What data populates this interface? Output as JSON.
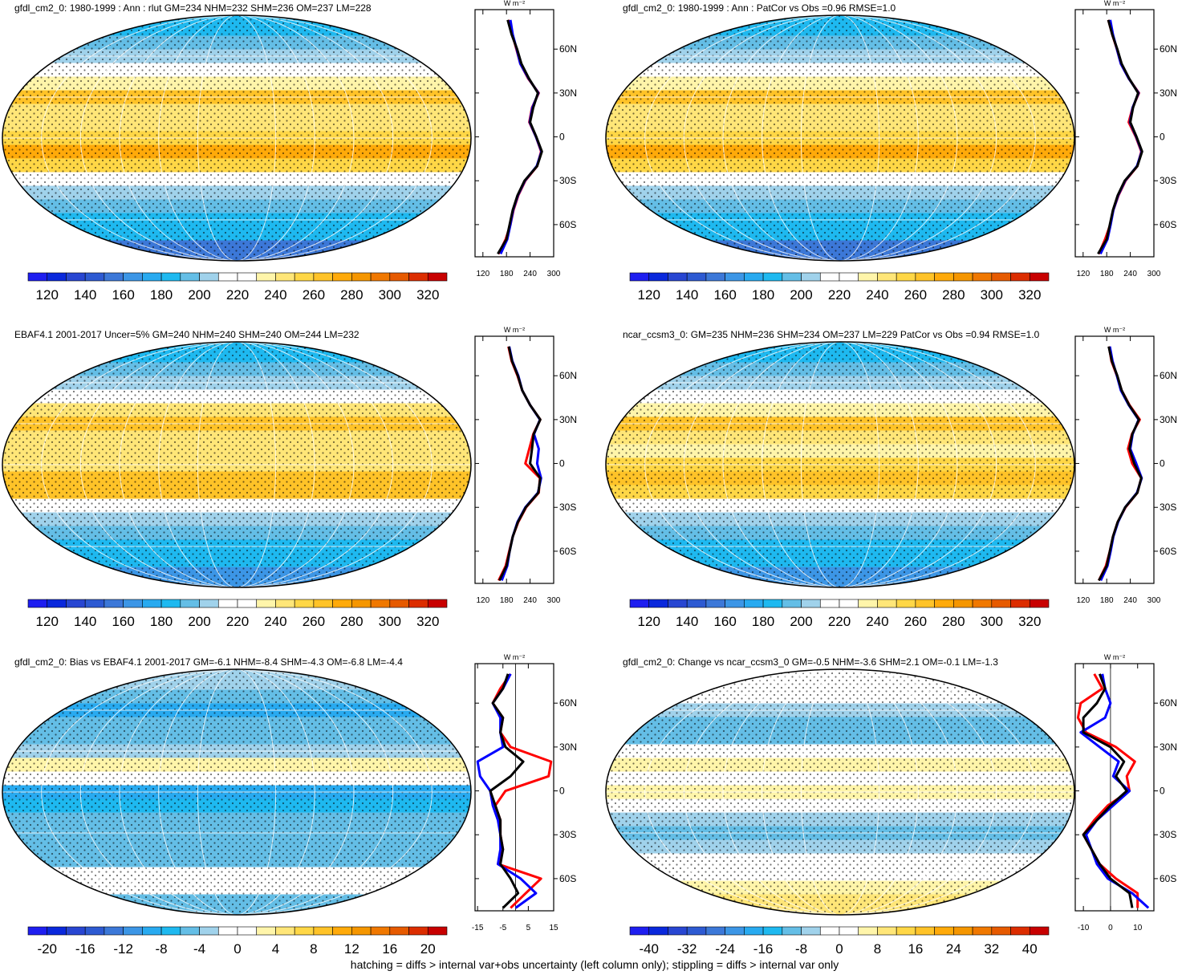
{
  "colormap": [
    "#1e1ef0",
    "#0a28dc",
    "#2846d2",
    "#2d5ad2",
    "#3c78d8",
    "#3c96e6",
    "#28aaf0",
    "#1eb9f0",
    "#64bee6",
    "#a0d2eb",
    "#ffffff",
    "#ffffff",
    "#fff5aa",
    "#ffe678",
    "#ffd746",
    "#ffc328",
    "#ffaa0a",
    "#f59600",
    "#f07800",
    "#e65a00",
    "#dc2d00",
    "#c80000"
  ],
  "panels": [
    {
      "title": "gfdl_cm2_0: 1980-1999 : Ann : rlut GM=234 NHM=232 SHM=236 OM=237 LM=228",
      "colorbar": {
        "labels": [
          120,
          140,
          160,
          180,
          200,
          220,
          240,
          260,
          280,
          300,
          320
        ]
      },
      "zonal": {
        "unit": "W m⁻²",
        "xlim": [
          100,
          300
        ],
        "xticks": [
          120,
          180,
          240,
          300
        ],
        "ylim": [
          -82,
          87
        ],
        "yticks": [
          {
            "value": 60,
            "label": "60N"
          },
          {
            "value": 30,
            "label": "30N"
          },
          0,
          {
            "value": -30,
            "label": "30S"
          },
          {
            "value": -60,
            "label": "60S"
          }
        ],
        "lat": [
          80,
          70,
          60,
          50,
          40,
          30,
          20,
          10,
          0,
          -10,
          -20,
          -30,
          -40,
          -50,
          -60,
          -70,
          -80
        ],
        "series": [
          {
            "color": "#ff0000",
            "values": [
              185,
              195,
              205,
              215,
              235,
              262,
              245,
              238,
              255,
              268,
              258,
              228,
              210,
              198,
              190,
              178,
              160
            ]
          },
          {
            "color": "#0000ff",
            "values": [
              190,
              196,
              206,
              215,
              236,
              261,
              246,
              239,
              255,
              269,
              257,
              227,
              209,
              197,
              190,
              182,
              165
            ]
          },
          {
            "color": "#000000",
            "values": [
              183,
              193,
              207,
              218,
              237,
              260,
              248,
              240,
              256,
              270,
              258,
              226,
              208,
              196,
              188,
              180,
              158
            ]
          }
        ]
      }
    },
    {
      "title": "gfdl_cm2_0: 1980-1999 : Ann : PatCor vs Obs =0.96 RMSE=1.0",
      "colorbar": {
        "labels": [
          120,
          140,
          160,
          180,
          200,
          220,
          240,
          260,
          280,
          300,
          320
        ]
      },
      "zonal": {
        "unit": "W m⁻²",
        "xlim": [
          100,
          300
        ],
        "xticks": [
          120,
          180,
          240,
          300
        ],
        "ylim": [
          -82,
          87
        ],
        "yticks": [
          {
            "value": 60,
            "label": "60N"
          },
          {
            "value": 30,
            "label": "30N"
          },
          0,
          {
            "value": -30,
            "label": "30S"
          },
          {
            "value": -60,
            "label": "60S"
          }
        ],
        "lat": [
          80,
          70,
          60,
          50,
          40,
          30,
          20,
          10,
          0,
          -10,
          -20,
          -30,
          -40,
          -50,
          -60,
          -70,
          -80
        ],
        "series": [
          {
            "color": "#ff0000",
            "values": [
              184,
              194,
              206,
              216,
              236,
              262,
              246,
              236,
              254,
              268,
              258,
              228,
              210,
              197,
              189,
              176,
              160
            ]
          },
          {
            "color": "#0000ff",
            "values": [
              189,
              196,
              206,
              216,
              236,
              261,
              246,
              239,
              255,
              269,
              257,
              227,
              209,
              197,
              190,
              182,
              164
            ]
          },
          {
            "color": "#000000",
            "values": [
              184,
              194,
              207,
              218,
              237,
              260,
              247,
              240,
              256,
              270,
              258,
              226,
              208,
              196,
              188,
              180,
              158
            ]
          }
        ]
      }
    },
    {
      "title": "EBAF4.1 2001-2017 Uncer=5% GM=240 NHM=240 SHM=240 OM=244 LM=232",
      "colorbar": {
        "labels": [
          120,
          140,
          160,
          180,
          200,
          220,
          240,
          260,
          280,
          300,
          320
        ]
      },
      "zonal": {
        "unit": "W m⁻²",
        "xlim": [
          100,
          300
        ],
        "xticks": [
          120,
          180,
          240,
          300
        ],
        "ylim": [
          -82,
          87
        ],
        "yticks": [
          {
            "value": 60,
            "label": "60N"
          },
          {
            "value": 30,
            "label": "30N"
          },
          0,
          {
            "value": -30,
            "label": "30S"
          },
          {
            "value": -60,
            "label": "60S"
          }
        ],
        "lat": [
          80,
          70,
          60,
          50,
          40,
          30,
          20,
          10,
          0,
          -10,
          -20,
          -30,
          -40,
          -50,
          -60,
          -70,
          -80
        ],
        "series": [
          {
            "color": "#ff0000",
            "values": [
              185,
              193,
              208,
              220,
              240,
              266,
              248,
              238,
              228,
              265,
              262,
              230,
              210,
              196,
              187,
              178,
              160
            ]
          },
          {
            "color": "#0000ff",
            "values": [
              187,
              195,
              210,
              220,
              240,
              265,
              250,
              262,
              258,
              268,
              260,
              228,
              208,
              196,
              188,
              182,
              168
            ]
          },
          {
            "color": "#000000",
            "values": [
              186,
              194,
              209,
              220,
              240,
              266,
              249,
              245,
              240,
              266,
              261,
              229,
              209,
              196,
              188,
              180,
              162
            ]
          }
        ]
      }
    },
    {
      "title": "ncar_ccsm3_0: GM=235 NHM=236 SHM=234 OM=237 LM=229 PatCor vs Obs =0.94 RMSE=1.0",
      "colorbar": {
        "labels": [
          120,
          140,
          160,
          180,
          200,
          220,
          240,
          260,
          280,
          300,
          320
        ]
      },
      "zonal": {
        "unit": "W m⁻²",
        "xlim": [
          100,
          300
        ],
        "xticks": [
          120,
          180,
          240,
          300
        ],
        "ylim": [
          -82,
          87
        ],
        "yticks": [
          {
            "value": 60,
            "label": "60N"
          },
          {
            "value": 30,
            "label": "30N"
          },
          0,
          {
            "value": -30,
            "label": "30S"
          },
          {
            "value": -60,
            "label": "60S"
          }
        ],
        "lat": [
          80,
          70,
          60,
          50,
          40,
          30,
          20,
          10,
          0,
          -10,
          -20,
          -30,
          -40,
          -50,
          -60,
          -70,
          -80
        ],
        "series": [
          {
            "color": "#ff0000",
            "values": [
              186,
              192,
              206,
              218,
              238,
              264,
              244,
              234,
              245,
              268,
              258,
              228,
              208,
              196,
              188,
              178,
              160
            ]
          },
          {
            "color": "#0000ff",
            "values": [
              188,
              195,
              206,
              216,
              236,
              261,
              246,
              240,
              255,
              269,
              257,
              227,
              209,
              197,
              190,
              182,
              165
            ]
          },
          {
            "color": "#000000",
            "values": [
              185,
              193,
              207,
              218,
              237,
              262,
              245,
              238,
              250,
              268,
              258,
              227,
              208,
              196,
              188,
              180,
              160
            ]
          }
        ]
      }
    },
    {
      "title": "gfdl_cm2_0: Bias vs EBAF4.1 2001-2017 GM=-6.1 NHM=-8.4 SHM=-4.3 OM=-6.8 LM=-4.4",
      "colorbar": {
        "labels": [
          -20,
          -16,
          -12,
          -8,
          -4,
          0,
          4,
          8,
          12,
          16,
          20
        ]
      },
      "zonal": {
        "unit": "W m⁻²",
        "xlim": [
          -16,
          15
        ],
        "xticks": [
          -15,
          -5,
          5,
          15
        ],
        "ylim": [
          -82,
          87
        ],
        "yticks": [
          {
            "value": 60,
            "label": "60N"
          },
          {
            "value": 30,
            "label": "30N"
          },
          0,
          {
            "value": -30,
            "label": "30S"
          },
          {
            "value": -60,
            "label": "60S"
          }
        ],
        "lat": [
          80,
          70,
          60,
          50,
          40,
          30,
          20,
          10,
          0,
          -10,
          -20,
          -30,
          -40,
          -50,
          -60,
          -70,
          -80
        ],
        "series": [
          {
            "color": "#ff0000",
            "values": [
              -2,
              -6,
              -9,
              -5,
              -6,
              -2,
              14,
              13,
              -4,
              -8,
              -6,
              -6,
              -5,
              -7,
              10,
              4,
              -2
            ]
          },
          {
            "color": "#0000ff",
            "values": [
              -2,
              -5,
              -9,
              -6,
              -6,
              -5,
              -15,
              -14,
              -10,
              -9,
              -7,
              -6,
              -6,
              -7,
              2,
              8,
              0
            ]
          },
          {
            "color": "#000000",
            "values": [
              -3,
              -5,
              -9,
              -5,
              -6,
              -4,
              3,
              -2,
              -10,
              -8,
              -6,
              -6,
              -5,
              -6,
              -2,
              1,
              -5
            ]
          }
        ]
      }
    },
    {
      "title": "gfdl_cm2_0: Change vs ncar_ccsm3_0 GM=-0.5 NHM=-3.6 SHM=2.1 OM=-0.1 LM=-1.3",
      "colorbar": {
        "labels": [
          -40,
          -32,
          -24,
          -16,
          -8,
          0,
          8,
          16,
          24,
          32,
          40
        ]
      },
      "zonal": {
        "unit": "W m⁻²",
        "xlim": [
          -13,
          16
        ],
        "xticks": [
          -10,
          0,
          10
        ],
        "ylim": [
          -82,
          87
        ],
        "yticks": [
          {
            "value": 60,
            "label": "60N"
          },
          {
            "value": 30,
            "label": "30N"
          },
          0,
          {
            "value": -30,
            "label": "30S"
          },
          {
            "value": -60,
            "label": "60S"
          }
        ],
        "lat": [
          80,
          70,
          60,
          50,
          40,
          30,
          20,
          10,
          0,
          -10,
          -20,
          -30,
          -40,
          -50,
          -60,
          -70,
          -80
        ],
        "series": [
          {
            "color": "#ff0000",
            "values": [
              -6,
              -3,
              -11,
              -12,
              -9,
              2,
              9,
              6,
              7,
              -1,
              -6,
              -10,
              -7,
              -4,
              2,
              10,
              10
            ]
          },
          {
            "color": "#0000ff",
            "values": [
              -3,
              -2,
              0,
              -2,
              -11,
              -4,
              3,
              1,
              7,
              1,
              -5,
              -9,
              -7,
              -5,
              -1,
              8,
              14
            ]
          },
          {
            "color": "#000000",
            "values": [
              -4,
              -2,
              -5,
              -10,
              -10,
              0,
              5,
              2,
              6,
              0,
              -5,
              -10,
              -7,
              -4,
              0,
              7,
              8
            ]
          }
        ]
      }
    }
  ],
  "footer": "hatching = diffs > internal var+obs uncertainty (left column only); stippling = diffs > internal var only"
}
